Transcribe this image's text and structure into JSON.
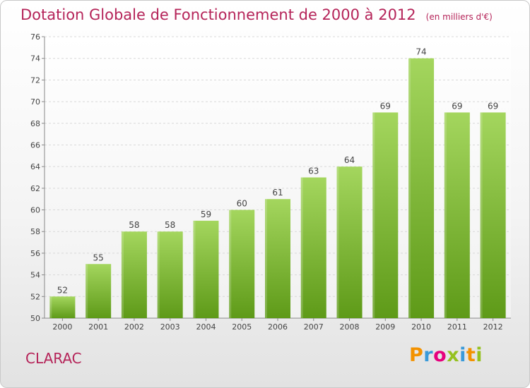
{
  "header": {
    "title": "Dotation Globale de Fonctionnement de 2000 à 2012",
    "unit": "(en milliers d'€)"
  },
  "commune": "CLARAC",
  "brand": {
    "name": "Proxiti",
    "letters": [
      {
        "char": "P",
        "color": "#f39200"
      },
      {
        "char": "r",
        "color": "#3a9ad9"
      },
      {
        "char": "o",
        "color": "#e6007e"
      },
      {
        "char": "x",
        "color": "#95c11f"
      },
      {
        "char": "i",
        "color": "#3a9ad9"
      },
      {
        "char": "t",
        "color": "#f39200"
      },
      {
        "char": "i",
        "color": "#95c11f"
      }
    ]
  },
  "colors": {
    "accent": "#b52459",
    "bar_light": "#a4d65e",
    "bar_dark": "#5e9a18"
  },
  "chart_data": {
    "type": "bar",
    "categories": [
      "2000",
      "2001",
      "2002",
      "2003",
      "2004",
      "2005",
      "2006",
      "2007",
      "2008",
      "2009",
      "2010",
      "2011",
      "2012"
    ],
    "values": [
      52,
      55,
      58,
      58,
      59,
      60,
      61,
      63,
      64,
      69,
      74,
      69,
      69
    ],
    "ylim": [
      50,
      76
    ],
    "yticks": [
      50,
      52,
      54,
      56,
      58,
      60,
      62,
      64,
      66,
      68,
      70,
      72,
      74,
      76
    ],
    "grid": true,
    "data_labels": true
  }
}
